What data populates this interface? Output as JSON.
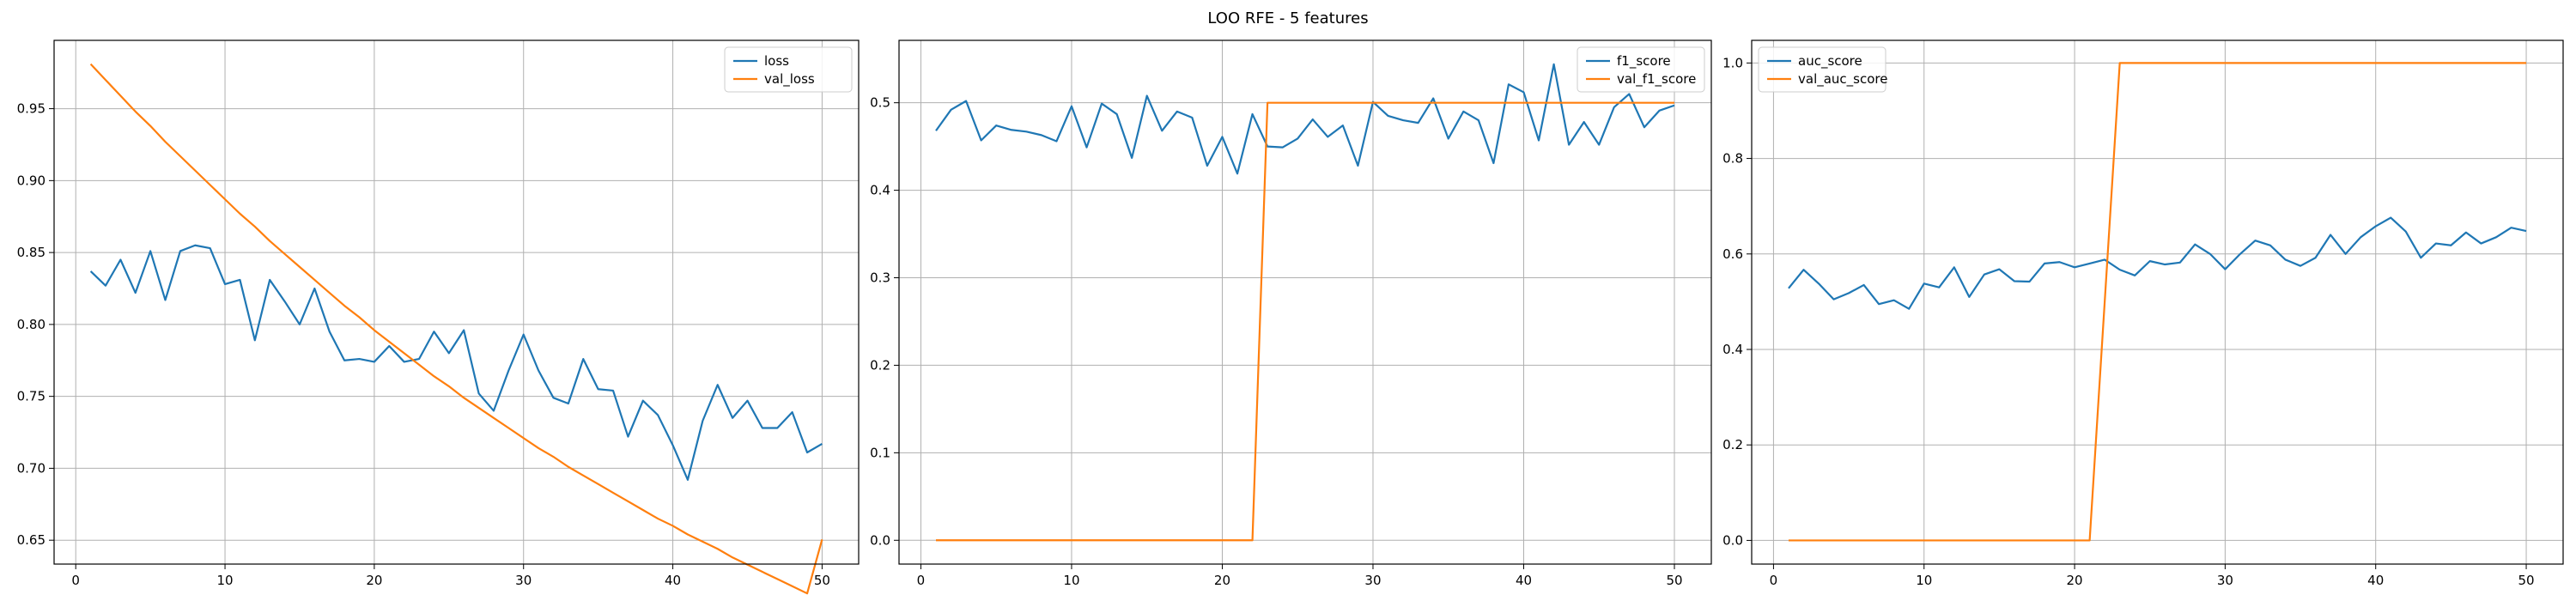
{
  "figure": {
    "suptitle": "LOO RFE - 5 features"
  },
  "colors": {
    "series0": "#1f77b4",
    "series1": "#ff7f0e",
    "grid": "#b0b0b0",
    "axes": "#000000"
  },
  "chart_data": [
    {
      "type": "line",
      "xlim": [
        -1.45,
        52.45
      ],
      "ylim": [
        0.6334,
        0.9975
      ],
      "xticks": [
        0,
        10,
        20,
        30,
        40,
        50
      ],
      "yticks": [
        0.65,
        0.7,
        0.75,
        0.8,
        0.85,
        0.9,
        0.95
      ],
      "ytick_labels": [
        "0.65",
        "0.70",
        "0.75",
        "0.80",
        "0.85",
        "0.90",
        "0.95"
      ],
      "grid": true,
      "legend_position": "top-right",
      "series": [
        {
          "name": "loss",
          "color": "#1f77b4",
          "x": [
            1,
            2,
            3,
            4,
            5,
            6,
            7,
            8,
            9,
            10,
            11,
            12,
            13,
            14,
            15,
            16,
            17,
            18,
            19,
            20,
            21,
            22,
            23,
            24,
            25,
            26,
            27,
            28,
            29,
            30,
            31,
            32,
            33,
            34,
            35,
            36,
            37,
            38,
            39,
            40,
            41,
            42,
            43,
            44,
            45,
            46,
            47,
            48,
            49,
            50
          ],
          "y": [
            0.837,
            0.827,
            0.845,
            0.822,
            0.851,
            0.817,
            0.851,
            0.855,
            0.853,
            0.828,
            0.831,
            0.789,
            0.831,
            0.816,
            0.8,
            0.825,
            0.795,
            0.775,
            0.776,
            0.774,
            0.785,
            0.774,
            0.776,
            0.795,
            0.78,
            0.796,
            0.752,
            0.74,
            0.768,
            0.793,
            0.768,
            0.749,
            0.745,
            0.776,
            0.755,
            0.754,
            0.722,
            0.747,
            0.737,
            0.716,
            0.692,
            0.733,
            0.758,
            0.735,
            0.747,
            0.728,
            0.728,
            0.739,
            0.711,
            0.717
          ]
        },
        {
          "name": "val_loss",
          "color": "#ff7f0e",
          "x": [
            1,
            2,
            3,
            4,
            5,
            6,
            7,
            8,
            9,
            10,
            11,
            12,
            13,
            14,
            15,
            16,
            17,
            18,
            19,
            20,
            21,
            22,
            23,
            24,
            25,
            26,
            27,
            28,
            29,
            30,
            31,
            32,
            33,
            34,
            35,
            36,
            37,
            38,
            39,
            40,
            41,
            42,
            43,
            44,
            45,
            46,
            47,
            48,
            49,
            50
          ],
          "y": [
            0.981,
            0.97,
            0.959,
            0.948,
            0.938,
            0.927,
            0.917,
            0.907,
            0.897,
            0.887,
            0.877,
            0.868,
            0.858,
            0.849,
            0.84,
            0.831,
            0.822,
            0.813,
            0.805,
            0.796,
            0.788,
            0.78,
            0.772,
            0.764,
            0.757,
            0.749,
            0.742,
            0.735,
            0.728,
            0.721,
            0.714,
            0.708,
            0.701,
            0.695,
            0.689,
            0.683,
            0.677,
            0.671,
            0.665,
            0.66,
            0.654,
            0.649,
            0.644,
            0.638,
            0.633,
            0.628,
            0.623,
            0.618,
            0.613,
            0.6505
          ]
        }
      ]
    },
    {
      "type": "line",
      "xlim": [
        -1.45,
        52.45
      ],
      "ylim": [
        -0.0272,
        0.5713
      ],
      "xticks": [
        0,
        10,
        20,
        30,
        40,
        50
      ],
      "yticks": [
        0.0,
        0.1,
        0.2,
        0.3,
        0.4,
        0.5
      ],
      "ytick_labels": [
        "0.0",
        "0.1",
        "0.2",
        "0.3",
        "0.4",
        "0.5"
      ],
      "grid": true,
      "legend_position": "top-right",
      "series": [
        {
          "name": "f1_score",
          "color": "#1f77b4",
          "x": [
            1,
            2,
            3,
            4,
            5,
            6,
            7,
            8,
            9,
            10,
            11,
            12,
            13,
            14,
            15,
            16,
            17,
            18,
            19,
            20,
            21,
            22,
            23,
            24,
            25,
            26,
            27,
            28,
            29,
            30,
            31,
            32,
            33,
            34,
            35,
            36,
            37,
            38,
            39,
            40,
            41,
            42,
            43,
            44,
            45,
            46,
            47,
            48,
            49,
            50
          ],
          "y": [
            0.468,
            0.492,
            0.502,
            0.457,
            0.474,
            0.469,
            0.467,
            0.463,
            0.456,
            0.496,
            0.449,
            0.499,
            0.487,
            0.437,
            0.508,
            0.468,
            0.49,
            0.483,
            0.428,
            0.461,
            0.419,
            0.487,
            0.45,
            0.449,
            0.459,
            0.481,
            0.461,
            0.474,
            0.428,
            0.501,
            0.485,
            0.48,
            0.477,
            0.505,
            0.459,
            0.49,
            0.48,
            0.431,
            0.521,
            0.512,
            0.457,
            0.544,
            0.452,
            0.478,
            0.452,
            0.495,
            0.51,
            0.472,
            0.491,
            0.497
          ]
        },
        {
          "name": "val_f1_score",
          "color": "#ff7f0e",
          "x": [
            1,
            2,
            3,
            4,
            5,
            6,
            7,
            8,
            9,
            10,
            11,
            12,
            13,
            14,
            15,
            16,
            17,
            18,
            19,
            20,
            21,
            22,
            23,
            24,
            25,
            26,
            27,
            28,
            29,
            30,
            31,
            32,
            33,
            34,
            35,
            36,
            37,
            38,
            39,
            40,
            41,
            42,
            43,
            44,
            45,
            46,
            47,
            48,
            49,
            50
          ],
          "y": [
            0,
            0,
            0,
            0,
            0,
            0,
            0,
            0,
            0,
            0,
            0,
            0,
            0,
            0,
            0,
            0,
            0,
            0,
            0,
            0,
            0,
            0,
            0.5,
            0.5,
            0.5,
            0.5,
            0.5,
            0.5,
            0.5,
            0.5,
            0.5,
            0.5,
            0.5,
            0.5,
            0.5,
            0.5,
            0.5,
            0.5,
            0.5,
            0.5,
            0.5,
            0.5,
            0.5,
            0.5,
            0.5,
            0.5,
            0.5,
            0.5,
            0.5,
            0.5
          ]
        }
      ]
    },
    {
      "type": "line",
      "xlim": [
        -1.45,
        52.45
      ],
      "ylim": [
        -0.0496,
        1.0474
      ],
      "xticks": [
        0,
        10,
        20,
        30,
        40,
        50
      ],
      "yticks": [
        0.0,
        0.2,
        0.4,
        0.6,
        0.8,
        1.0
      ],
      "ytick_labels": [
        "0.0",
        "0.2",
        "0.4",
        "0.6",
        "0.8",
        "1.0"
      ],
      "grid": true,
      "legend_position": "top-left",
      "series": [
        {
          "name": "auc_score",
          "color": "#1f77b4",
          "x": [
            1,
            2,
            3,
            4,
            5,
            6,
            7,
            8,
            9,
            10,
            11,
            12,
            13,
            14,
            15,
            16,
            17,
            18,
            19,
            20,
            21,
            22,
            23,
            24,
            25,
            26,
            27,
            28,
            29,
            30,
            31,
            32,
            33,
            34,
            35,
            36,
            37,
            38,
            39,
            40,
            41,
            42,
            43,
            44,
            45,
            46,
            47,
            48,
            49,
            50
          ],
          "y": [
            0.528,
            0.567,
            0.538,
            0.505,
            0.518,
            0.535,
            0.495,
            0.503,
            0.485,
            0.538,
            0.53,
            0.572,
            0.51,
            0.557,
            0.568,
            0.543,
            0.542,
            0.58,
            0.583,
            0.572,
            0.58,
            0.588,
            0.567,
            0.555,
            0.585,
            0.578,
            0.582,
            0.62,
            0.6,
            0.568,
            0.6,
            0.628,
            0.618,
            0.588,
            0.575,
            0.592,
            0.64,
            0.6,
            0.635,
            0.658,
            0.676,
            0.647,
            0.592,
            0.622,
            0.618,
            0.645,
            0.622,
            0.635,
            0.655,
            0.648
          ]
        },
        {
          "name": "val_auc_score",
          "color": "#ff7f0e",
          "x": [
            1,
            2,
            3,
            4,
            5,
            6,
            7,
            8,
            9,
            10,
            11,
            12,
            13,
            14,
            15,
            16,
            17,
            18,
            19,
            20,
            21,
            22,
            23,
            24,
            25,
            26,
            27,
            28,
            29,
            30,
            31,
            32,
            33,
            34,
            35,
            36,
            37,
            38,
            39,
            40,
            41,
            42,
            43,
            44,
            45,
            46,
            47,
            48,
            49,
            50
          ],
          "y": [
            0,
            0,
            0,
            0,
            0,
            0,
            0,
            0,
            0,
            0,
            0,
            0,
            0,
            0,
            0,
            0,
            0,
            0,
            0,
            0,
            0,
            0.5,
            1,
            1,
            1,
            1,
            1,
            1,
            1,
            1,
            1,
            1,
            1,
            1,
            1,
            1,
            1,
            1,
            1,
            1,
            1,
            1,
            1,
            1,
            1,
            1,
            1,
            1,
            1,
            1
          ]
        }
      ]
    }
  ]
}
